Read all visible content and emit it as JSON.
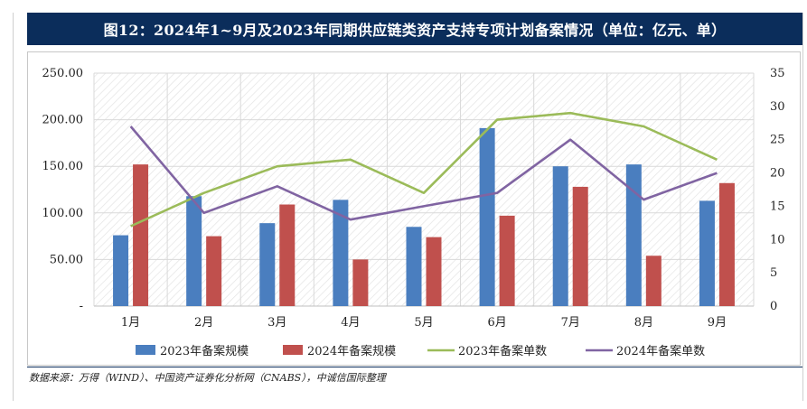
{
  "figure": {
    "title": "图12：2024年1~9月及2023年同期供应链类资产支持专项计划备案情况（单位：亿元、单）",
    "source": "数据来源：万得（WIND）、中国资产证券化分析网（CNABS），中诚信国际整理"
  },
  "colors": {
    "bar2023": "#4a7ebf",
    "bar2024": "#c0504d",
    "line2023": "#9bbb59",
    "line2024": "#8064a2",
    "title_bg": "#0b2d5b"
  },
  "chart_data": {
    "type": "bar",
    "categories": [
      "1月",
      "2月",
      "3月",
      "4月",
      "5月",
      "6月",
      "7月",
      "8月",
      "9月"
    ],
    "series": [
      {
        "name": "2023年备案规模",
        "type": "bar",
        "axis": "left",
        "values": [
          76,
          118,
          89,
          114,
          85,
          191,
          150,
          152,
          113
        ]
      },
      {
        "name": "2024年备案规模",
        "type": "bar",
        "axis": "left",
        "values": [
          152,
          75,
          109,
          50,
          74,
          97,
          128,
          54,
          132
        ]
      },
      {
        "name": "2023年备案单数",
        "type": "line",
        "axis": "right",
        "values": [
          12,
          17,
          21,
          22,
          17,
          28,
          29,
          27,
          22
        ]
      },
      {
        "name": "2024年备案单数",
        "type": "line",
        "axis": "right",
        "values": [
          27,
          14,
          18,
          13,
          15,
          17,
          25,
          16,
          20
        ]
      }
    ],
    "y_left": {
      "lim": [
        0,
        250
      ],
      "ticks": [
        "-",
        "50.00",
        "100.00",
        "150.00",
        "200.00",
        "250.00"
      ]
    },
    "y_right": {
      "lim": [
        0,
        35
      ],
      "ticks": [
        "0",
        "5",
        "10",
        "15",
        "20",
        "25",
        "30",
        "35"
      ]
    },
    "grid": "hatched",
    "legend_position": "bottom"
  }
}
